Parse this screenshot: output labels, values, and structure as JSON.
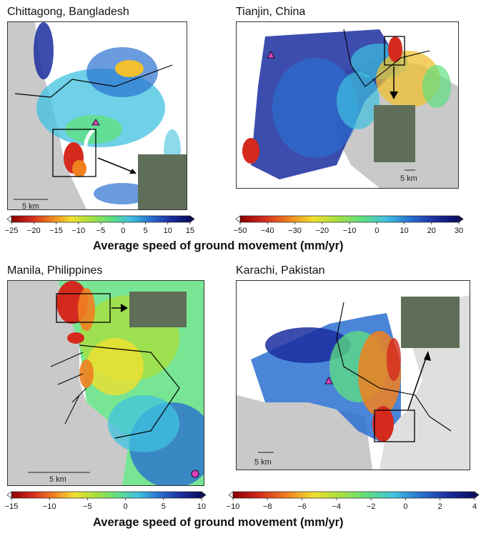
{
  "panels": [
    {
      "id": "chittagong",
      "title": "Chittagong, Bangladesh",
      "scale_label": "5 km"
    },
    {
      "id": "tianjin",
      "title": "Tianjin, China",
      "scale_label": "5 km"
    },
    {
      "id": "manila",
      "title": "Manila, Philippines",
      "scale_label": "5 km"
    },
    {
      "id": "karachi",
      "title": "Karachi, Pakistan",
      "scale_label": "5 km"
    }
  ],
  "colorbars": [
    {
      "id": "top-left",
      "min": -25,
      "max": 15,
      "ticks": [
        "−25",
        "−20",
        "−15",
        "−10",
        "−5",
        "0",
        "5",
        "10",
        "15"
      ]
    },
    {
      "id": "top-right",
      "min": -50,
      "max": 30,
      "ticks": [
        "−50",
        "−40",
        "−30",
        "−20",
        "−10",
        "0",
        "10",
        "20",
        "30"
      ]
    },
    {
      "id": "bottom-left",
      "min": -15,
      "max": 10,
      "ticks": [
        "−15",
        "−10",
        "−5",
        "0",
        "5",
        "10"
      ]
    },
    {
      "id": "bottom-right",
      "min": -10,
      "max": 5,
      "ticks": [
        "−10",
        "−8",
        "−6",
        "−4",
        "−2",
        "0",
        "2",
        "4"
      ]
    }
  ],
  "captions": {
    "top": "Average speed of ground movement (mm/yr)",
    "bottom": "Average speed of ground movement (mm/yr)"
  },
  "colors": {
    "land": "#c9c9c9",
    "subsidence": "#d42a1e",
    "stable": "#3fc1e0",
    "uplift": "#1b2ea0",
    "marker": "#e040c0",
    "inset_imagery": "#5f6e58"
  }
}
